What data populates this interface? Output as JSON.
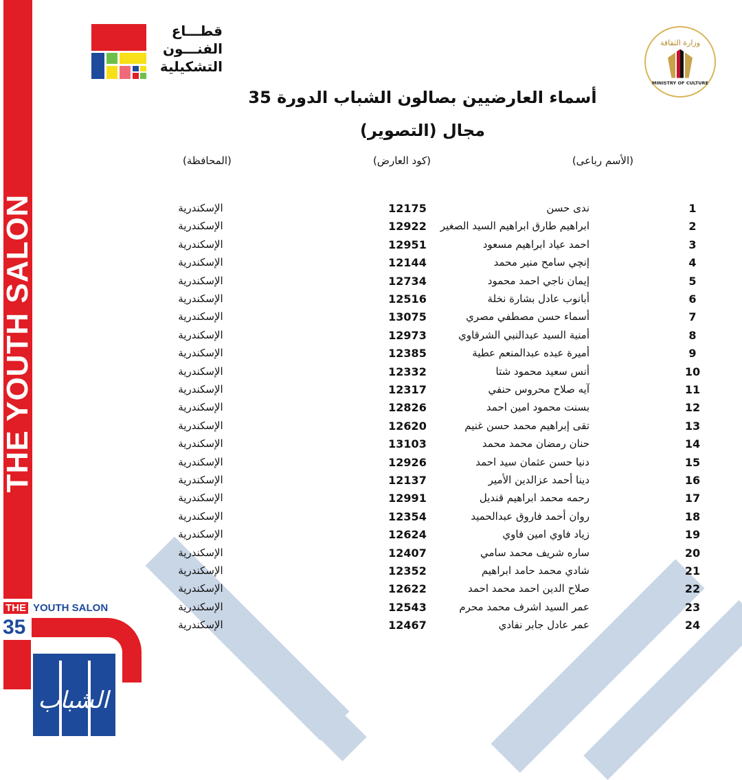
{
  "header": {
    "left_logo_text": "قطـــاع الفنـــون التشكيلية",
    "left_logo_colors": [
      "#e11d25",
      "#1d4a9a",
      "#6cc04a",
      "#f7e018",
      "#f06a7a"
    ],
    "right_logo_text_top": "وزارة الثقافة",
    "right_logo_text_bottom": "MINISTRY OF CULTURE",
    "title": "أسماء العارضيين بصالون الشباب الدورة 35",
    "subtitle": "مجال (التصوير)"
  },
  "columns": {
    "name": "(الأسم رباعى)",
    "code": "(كود العارض)",
    "governorate": "(المحافظة)"
  },
  "rows": [
    {
      "num": "1",
      "name": "ندى حسن",
      "code": "12175",
      "gov": "الإسكندرية"
    },
    {
      "num": "2",
      "name": "ابراهيم طارق ابراهيم السيد الصغير",
      "code": "12922",
      "gov": "الإسكندرية"
    },
    {
      "num": "3",
      "name": "احمد عياد ابراهيم مسعود",
      "code": "12951",
      "gov": "الإسكندرية"
    },
    {
      "num": "4",
      "name": "إنچي سامح منير محمد",
      "code": "12144",
      "gov": "الإسكندرية"
    },
    {
      "num": "5",
      "name": "إيمان ناجي احمد محمود",
      "code": "12734",
      "gov": "الإسكندرية"
    },
    {
      "num": "6",
      "name": "أبانوب عادل بشارة نخلة",
      "code": "12516",
      "gov": "الإسكندرية"
    },
    {
      "num": "7",
      "name": "أسماء حسن مصطفي مصري",
      "code": "13075",
      "gov": "الإسكندرية"
    },
    {
      "num": "8",
      "name": "أمنية السيد عبدالنبي الشرقاوي",
      "code": "12973",
      "gov": "الإسكندرية"
    },
    {
      "num": "9",
      "name": "أميرة عبده عبدالمنعم عطية",
      "code": "12385",
      "gov": "الإسكندرية"
    },
    {
      "num": "10",
      "name": "أنس سعيد محمود شتا",
      "code": "12332",
      "gov": "الإسكندرية"
    },
    {
      "num": "11",
      "name": "آيه صلاح محروس حنفي",
      "code": "12317",
      "gov": "الإسكندرية"
    },
    {
      "num": "12",
      "name": "بسنت محمود امين احمد",
      "code": "12826",
      "gov": "الإسكندرية"
    },
    {
      "num": "13",
      "name": "تقى إبراهيم محمد حسن غنيم",
      "code": "12620",
      "gov": "الإسكندرية"
    },
    {
      "num": "14",
      "name": "حنان رمضان محمد محمد",
      "code": "13103",
      "gov": "الإسكندرية"
    },
    {
      "num": "15",
      "name": "دنيا حسن عثمان سيد احمد",
      "code": "12926",
      "gov": "الإسكندرية"
    },
    {
      "num": "16",
      "name": "دينا أحمد عزالدين الأمير",
      "code": "12137",
      "gov": "الإسكندرية"
    },
    {
      "num": "17",
      "name": "رحمه محمد ابراهيم قنديل",
      "code": "12991",
      "gov": "الإسكندرية"
    },
    {
      "num": "18",
      "name": "روان أحمد فاروق عبدالحميد",
      "code": "12354",
      "gov": "الإسكندرية"
    },
    {
      "num": "19",
      "name": "زياد فاوي امين فاوي",
      "code": "12624",
      "gov": "الإسكندرية"
    },
    {
      "num": "20",
      "name": "ساره شريف محمد سامي",
      "code": "12407",
      "gov": "الإسكندرية"
    },
    {
      "num": "21",
      "name": "شادي محمد حامد ابراهيم",
      "code": "12352",
      "gov": "الإسكندرية"
    },
    {
      "num": "22",
      "name": "صلاح الدين احمد محمد احمد",
      "code": "12622",
      "gov": "الإسكندرية"
    },
    {
      "num": "23",
      "name": "عمر السيد اشرف محمد محرم",
      "code": "12543",
      "gov": "الإسكندرية"
    },
    {
      "num": "24",
      "name": "عمر عادل جابر نفادي",
      "code": "12467",
      "gov": "الإسكندرية"
    }
  ],
  "side_band": {
    "text": "THE YOUTH SALON",
    "color": "#e11d25"
  },
  "youth_logo": {
    "the": "THE",
    "rest": "YOUTH SALON",
    "number": "35",
    "calligraphy": "الشباب"
  }
}
